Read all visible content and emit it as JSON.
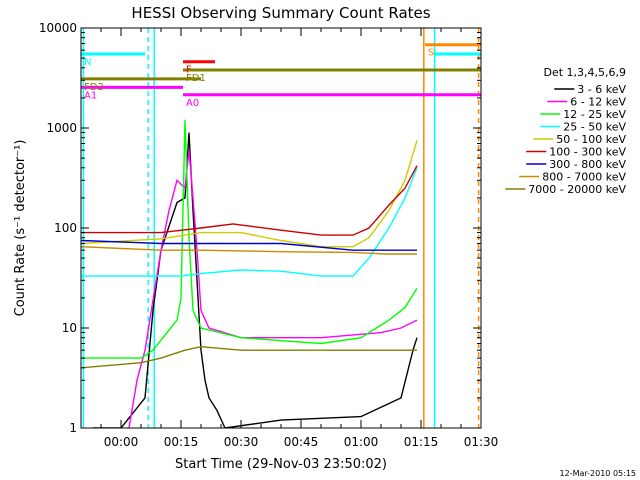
{
  "chart_data": {
    "type": "line",
    "title": "HESSI Observing Summary Count Rates",
    "xlabel": "Start Time (29-Nov-03 23:50:02)",
    "ylabel": "Count Rate (s⁻¹ detector⁻¹)",
    "y_scale": "log",
    "ylim": [
      1,
      10000
    ],
    "xlim_minutes": [
      -10.0,
      90.0
    ],
    "x_ticks": [
      {
        "label": "00:00",
        "min": 10
      },
      {
        "label": "00:15",
        "min": 25
      },
      {
        "label": "00:30",
        "min": 40
      },
      {
        "label": "00:45",
        "min": 55
      },
      {
        "label": "01:00",
        "min": 70
      },
      {
        "label": "01:15",
        "min": 85
      },
      {
        "label": "01:30",
        "min": 100
      }
    ],
    "y_ticks": [
      {
        "label": "1",
        "value": 1
      },
      {
        "label": "10",
        "value": 10
      },
      {
        "label": "100",
        "value": 100
      },
      {
        "label": "1000",
        "value": 1000
      },
      {
        "label": "10000",
        "value": 10000
      }
    ],
    "legend_title": "Det 1,3,4,5,6,9",
    "legend_position": "right",
    "footer_date": "12-Mar-2010 05:15",
    "series": [
      {
        "name": "3 - 6 keV",
        "color": "#000000",
        "data": [
          [
            -7,
            1
          ],
          [
            0,
            1
          ],
          [
            6,
            2
          ],
          [
            8,
            15
          ],
          [
            10,
            60
          ],
          [
            14,
            180
          ],
          [
            16,
            200
          ],
          [
            17,
            900
          ],
          [
            18,
            150
          ],
          [
            19,
            30
          ],
          [
            20,
            6
          ],
          [
            21,
            3
          ],
          [
            22,
            2
          ],
          [
            24,
            1.5
          ],
          [
            26,
            1
          ],
          [
            40,
            1.2
          ],
          [
            60,
            1.3
          ],
          [
            70,
            2
          ],
          [
            73,
            6
          ],
          [
            74,
            8
          ]
        ]
      },
      {
        "name": "6 - 12 keV",
        "color": "#ff00ff",
        "data": [
          [
            2,
            1
          ],
          [
            4,
            3
          ],
          [
            6,
            6
          ],
          [
            10,
            60
          ],
          [
            12,
            150
          ],
          [
            14,
            300
          ],
          [
            16,
            250
          ],
          [
            17,
            600
          ],
          [
            18,
            200
          ],
          [
            19,
            60
          ],
          [
            20,
            15
          ],
          [
            22,
            10
          ],
          [
            30,
            8
          ],
          [
            50,
            8
          ],
          [
            65,
            9
          ],
          [
            70,
            10
          ],
          [
            74,
            12
          ]
        ]
      },
      {
        "name": "12 - 25 keV",
        "color": "#00ff00",
        "data": [
          [
            -10,
            5
          ],
          [
            5,
            5
          ],
          [
            8,
            6
          ],
          [
            14,
            12
          ],
          [
            15,
            20
          ],
          [
            16,
            1200
          ],
          [
            17,
            80
          ],
          [
            18,
            15
          ],
          [
            20,
            10
          ],
          [
            30,
            8
          ],
          [
            50,
            7
          ],
          [
            60,
            8
          ],
          [
            67,
            12
          ],
          [
            71,
            16
          ],
          [
            74,
            25
          ]
        ]
      },
      {
        "name": "25 - 50 keV",
        "color": "#00ffff",
        "data": [
          [
            -10,
            33
          ],
          [
            15,
            33
          ],
          [
            20,
            35
          ],
          [
            30,
            38
          ],
          [
            40,
            37
          ],
          [
            50,
            33
          ],
          [
            58,
            33
          ],
          [
            62,
            50
          ],
          [
            67,
            100
          ],
          [
            71,
            200
          ],
          [
            74,
            400
          ]
        ]
      },
      {
        "name": "50 - 100 keV",
        "color": "#cccc00",
        "data": [
          [
            -10,
            70
          ],
          [
            10,
            78
          ],
          [
            20,
            90
          ],
          [
            30,
            90
          ],
          [
            40,
            75
          ],
          [
            50,
            65
          ],
          [
            58,
            65
          ],
          [
            62,
            80
          ],
          [
            67,
            150
          ],
          [
            71,
            300
          ],
          [
            74,
            750
          ]
        ]
      },
      {
        "name": "100 - 300 keV",
        "color": "#cc0000",
        "data": [
          [
            -10,
            90
          ],
          [
            10,
            90
          ],
          [
            20,
            100
          ],
          [
            28,
            110
          ],
          [
            40,
            95
          ],
          [
            50,
            85
          ],
          [
            58,
            85
          ],
          [
            62,
            100
          ],
          [
            67,
            170
          ],
          [
            71,
            250
          ],
          [
            74,
            420
          ]
        ]
      },
      {
        "name": "300 - 800 keV",
        "color": "#0000cc",
        "data": [
          [
            -10,
            75
          ],
          [
            10,
            70
          ],
          [
            20,
            70
          ],
          [
            40,
            70
          ],
          [
            58,
            60
          ],
          [
            66,
            60
          ],
          [
            74,
            60
          ]
        ]
      },
      {
        "name": "800 - 7000 keV",
        "color": "#cc8800",
        "data": [
          [
            -10,
            65
          ],
          [
            10,
            60
          ],
          [
            20,
            60
          ],
          [
            40,
            58
          ],
          [
            58,
            57
          ],
          [
            66,
            55
          ],
          [
            74,
            55
          ]
        ]
      },
      {
        "name": "7000 - 20000 keV",
        "color": "#808000",
        "data": [
          [
            -10,
            4
          ],
          [
            5,
            4.5
          ],
          [
            10,
            5
          ],
          [
            16,
            6
          ],
          [
            20,
            6.5
          ],
          [
            30,
            6
          ],
          [
            40,
            6
          ],
          [
            50,
            6
          ],
          [
            60,
            6
          ],
          [
            66,
            6
          ],
          [
            74,
            6
          ]
        ]
      }
    ],
    "flag_bars": [
      {
        "label": "N",
        "color": "#00ffff",
        "x_start": -10.0,
        "x_end": 6.0,
        "y": 5500
      },
      {
        "label": "F",
        "color": "#ff0000",
        "x_start": 15.5,
        "x_end": 23.5,
        "y": 4600
      },
      {
        "label": "FD1",
        "color": "#808000",
        "x_start": 15.5,
        "x_end": 90.0,
        "y": 3800
      },
      {
        "label": "FD2",
        "color": "#808000",
        "x_start": -10.0,
        "x_end": 20.0,
        "y": 3100
      },
      {
        "label": "A0",
        "color": "#ff00ff",
        "x_start": 15.5,
        "x_end": 90.0,
        "y": 2150
      },
      {
        "label": "A1",
        "color": "#ff00ff",
        "x_start": -10.0,
        "x_end": 15.5,
        "y": 2550
      },
      {
        "label": "S",
        "color": "#ff8800",
        "x_start": 76.0,
        "x_end": 90.0,
        "y": 6800
      },
      {
        "label": "",
        "color": "#00ffff",
        "x_start": 78.5,
        "x_end": 90.0,
        "y": 5500
      }
    ],
    "vertical_markers": [
      {
        "color": "#00ffff",
        "x": -9.4,
        "style": "solid"
      },
      {
        "color": "#00ffff",
        "x": 6.8,
        "style": "dashed"
      },
      {
        "color": "#00ffff",
        "x": 8.3,
        "style": "solid"
      },
      {
        "color": "#ff8800",
        "x": 75.7,
        "style": "solid"
      },
      {
        "color": "#00ffff",
        "x": 78.4,
        "style": "solid"
      },
      {
        "color": "#ff8800",
        "x": 89.4,
        "style": "dashed"
      },
      {
        "color": "#00ffff",
        "x": 90.5,
        "style": "dashed"
      }
    ]
  }
}
